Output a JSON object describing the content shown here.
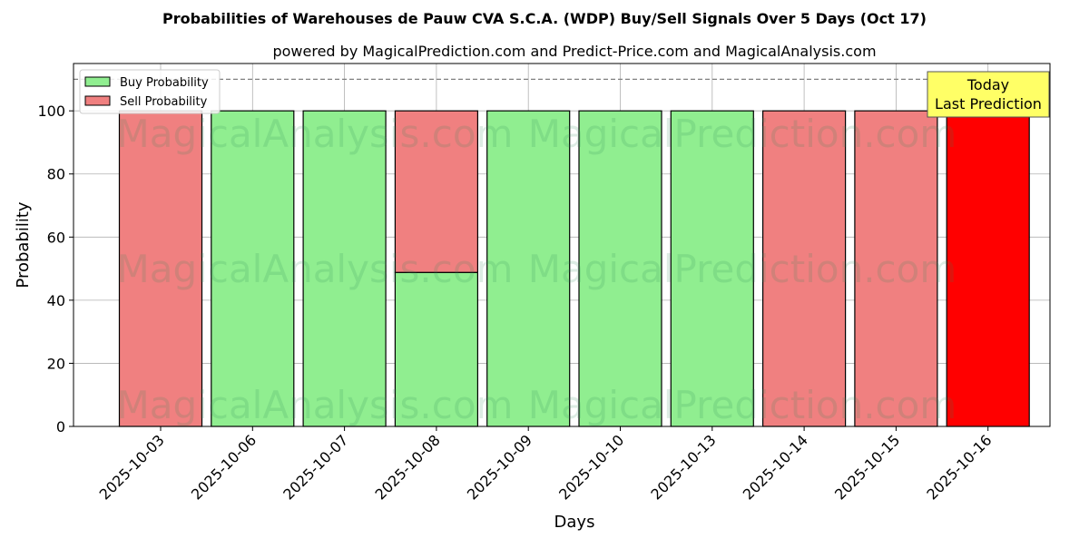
{
  "chart_data": {
    "type": "bar",
    "stacked": true,
    "title": "Probabilities of Warehouses de Pauw CVA S.C.A. (WDP) Buy/Sell Signals Over 5 Days (Oct 17)",
    "subtitle": "powered by MagicalPrediction.com and Predict-Price.com and MagicalAnalysis.com",
    "xlabel": "Days",
    "ylabel": "Probability",
    "ylim": [
      0,
      115
    ],
    "yticks": [
      0,
      20,
      40,
      60,
      80,
      100
    ],
    "grid": true,
    "legend_position": "top-left",
    "categories": [
      "2025-10-03",
      "2025-10-06",
      "2025-10-07",
      "2025-10-08",
      "2025-10-09",
      "2025-10-10",
      "2025-10-13",
      "2025-10-14",
      "2025-10-15",
      "2025-10-16"
    ],
    "series": [
      {
        "name": "Buy Probability",
        "color": "#90ee90",
        "values": [
          0,
          100,
          100,
          48.8,
          100,
          100,
          100,
          0,
          0,
          0
        ]
      },
      {
        "name": "Sell Probability",
        "color": "#f08080",
        "values": [
          100,
          0,
          0,
          51.2,
          0,
          0,
          0,
          100,
          100,
          100
        ]
      }
    ],
    "highlight": {
      "category": "2025-10-16",
      "sell_color": "#ff0000"
    },
    "reference_line": {
      "y": 110,
      "style": "dashed",
      "color": "#808080"
    },
    "annotation": {
      "lines": [
        "Today",
        "Last Prediction"
      ],
      "background": "#ffff66"
    },
    "watermarks": [
      "MagicalAnalysis.com",
      "MagicalPrediction.com"
    ]
  }
}
